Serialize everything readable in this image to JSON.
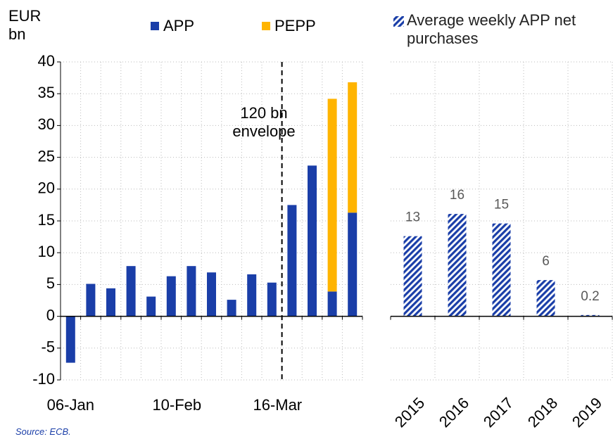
{
  "chart_data": [
    {
      "type": "stacked_bar",
      "y_label": "EUR bn",
      "annotation": "120 bn envelope",
      "source": "Source: ECB.",
      "categories": [
        "06-Jan",
        null,
        null,
        null,
        null,
        "10-Feb",
        null,
        null,
        null,
        null,
        "16-Mar",
        null,
        null,
        null,
        null
      ],
      "series": [
        {
          "name": "APP",
          "color": "#1a3ea8",
          "values": [
            -7.3,
            5.1,
            4.4,
            7.9,
            3.1,
            6.3,
            7.9,
            6.9,
            2.6,
            6.6,
            5.3,
            17.5,
            23.7,
            3.9,
            16.3
          ]
        },
        {
          "name": "PEPP",
          "color": "#ffb400",
          "values": [
            null,
            null,
            null,
            null,
            null,
            null,
            null,
            null,
            null,
            null,
            null,
            null,
            null,
            30.3,
            20.5
          ]
        }
      ],
      "ylim": [
        -10,
        40
      ],
      "yticks": [
        -10,
        -5,
        0,
        5,
        10,
        15,
        20,
        25,
        30,
        35,
        40
      ],
      "grid": true
    },
    {
      "type": "hatched_bar",
      "categories": [
        "2015",
        "2016",
        "2017",
        "2018",
        "2019"
      ],
      "series": [
        {
          "name": "Average weekly APP net purchases",
          "color": "#1a3ea8",
          "values": [
            12.6,
            16.1,
            14.6,
            5.7,
            0.2
          ],
          "value_labels": [
            "13",
            "16",
            "15",
            "6",
            "0.2"
          ]
        }
      ],
      "ylim": [
        -10,
        40
      ],
      "yticks": [
        -10,
        -5,
        0,
        5,
        10,
        15,
        20,
        25,
        30,
        35,
        40
      ],
      "grid": true
    }
  ]
}
